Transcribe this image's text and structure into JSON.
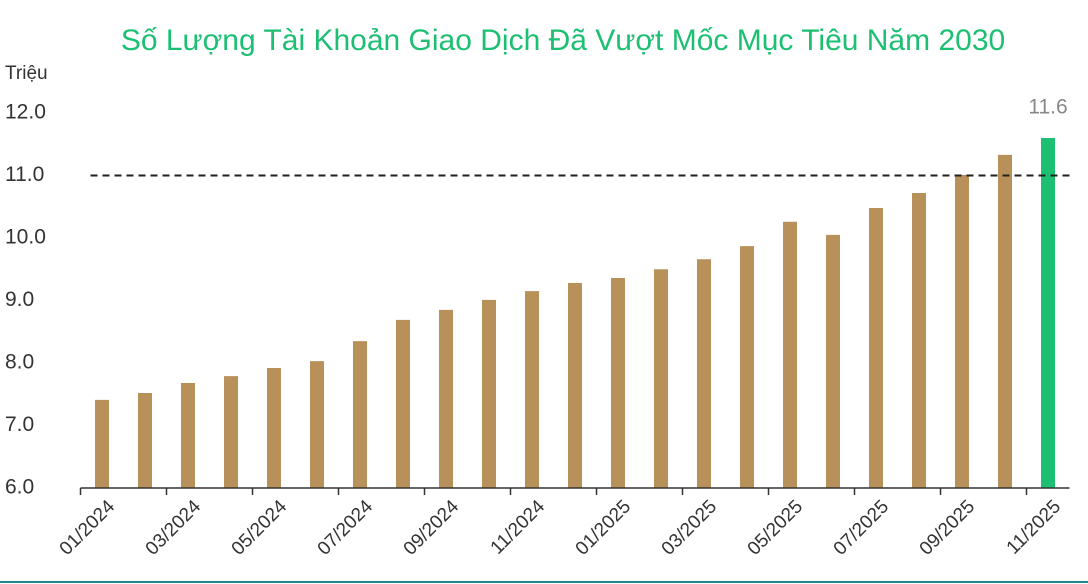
{
  "chart_data": {
    "type": "bar",
    "title": "Số Lượng Tài Khoản Giao Dịch Đã Vượt Mốc Mục Tiêu Năm 2030",
    "y_label": "Triệu",
    "categories": [
      "01/2024",
      null,
      "03/2024",
      null,
      "05/2024",
      null,
      "07/2024",
      null,
      "09/2024",
      null,
      "11/2024",
      null,
      "01/2025",
      null,
      "03/2025",
      null,
      "05/2025",
      null,
      "07/2025",
      null,
      "09/2025",
      null,
      "11/2025"
    ],
    "values": [
      7.41,
      7.52,
      7.68,
      7.79,
      7.92,
      8.03,
      8.35,
      8.69,
      8.85,
      9.01,
      9.15,
      9.28,
      9.36,
      9.5,
      9.66,
      9.87,
      10.26,
      10.05,
      10.48,
      10.72,
      11.01,
      11.33,
      11.6
    ],
    "value_labels": [
      null,
      null,
      null,
      null,
      null,
      null,
      null,
      null,
      null,
      null,
      null,
      null,
      null,
      null,
      null,
      null,
      null,
      null,
      null,
      null,
      null,
      null,
      "11.6"
    ],
    "colors": [
      "#b8915a",
      "#b8915a",
      "#b8915a",
      "#b8915a",
      "#b8915a",
      "#b8915a",
      "#b8915a",
      "#b8915a",
      "#b8915a",
      "#b8915a",
      "#b8915a",
      "#b8915a",
      "#b8915a",
      "#b8915a",
      "#b8915a",
      "#b8915a",
      "#b8915a",
      "#b8915a",
      "#b8915a",
      "#b8915a",
      "#b8915a",
      "#b8915a",
      "#1dbf73"
    ],
    "ylim": [
      6,
      12
    ],
    "yticks": [
      {
        "value": 6,
        "label": "6.0"
      },
      {
        "value": 7,
        "label": "7.0"
      },
      {
        "value": 8,
        "label": "8.0"
      },
      {
        "value": 9,
        "label": "9.0"
      },
      {
        "value": 10,
        "label": "10.0"
      },
      {
        "value": 11,
        "label": "11.0"
      },
      {
        "value": 12,
        "label": "12.0"
      }
    ],
    "reference_line": 11,
    "grid": false
  }
}
